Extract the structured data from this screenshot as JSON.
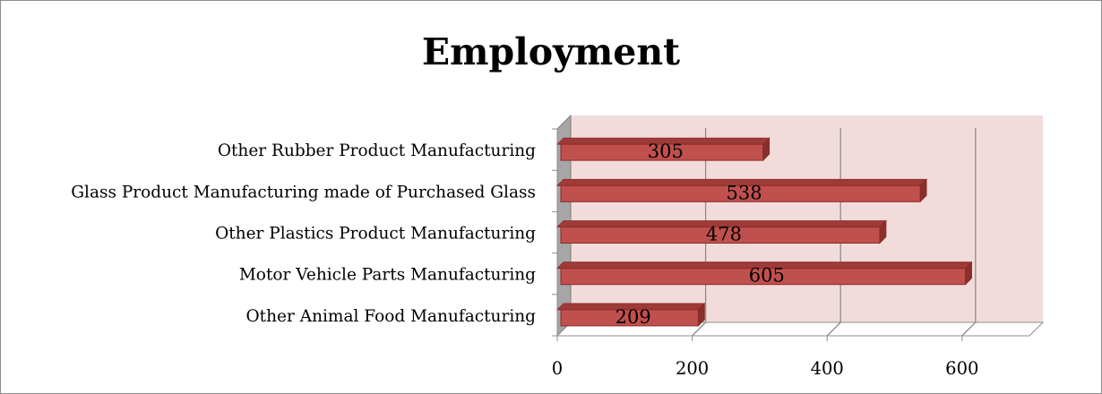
{
  "chart_data": {
    "type": "bar",
    "orientation": "horizontal",
    "style": "3d",
    "title": "Employment",
    "xlabel": "",
    "ylabel": "",
    "categories": [
      "Other Rubber Product Manufacturing",
      "Glass Product Manufacturing made of Purchased Glass",
      "Other Plastics Product Manufacturing",
      "Motor Vehicle Parts Manufacturing",
      "Other Animal Food Manufacturing"
    ],
    "values": [
      305,
      538,
      478,
      605,
      209
    ],
    "data_labels": [
      "305",
      "538",
      "478",
      "605",
      "209"
    ],
    "xlim": [
      0,
      700
    ],
    "ticks": [
      "0",
      "200",
      "400",
      "600"
    ],
    "grid": true,
    "legend": "none",
    "colors": {
      "bar_front": "#c0504d",
      "bar_top": "#9e3b38",
      "bar_side": "#8a2f2c",
      "bar_edge": "#8b2a27",
      "wall": "#f2dcdb",
      "floor_wall": "#a6a6a6",
      "gridline": "#8c8c8c"
    }
  }
}
